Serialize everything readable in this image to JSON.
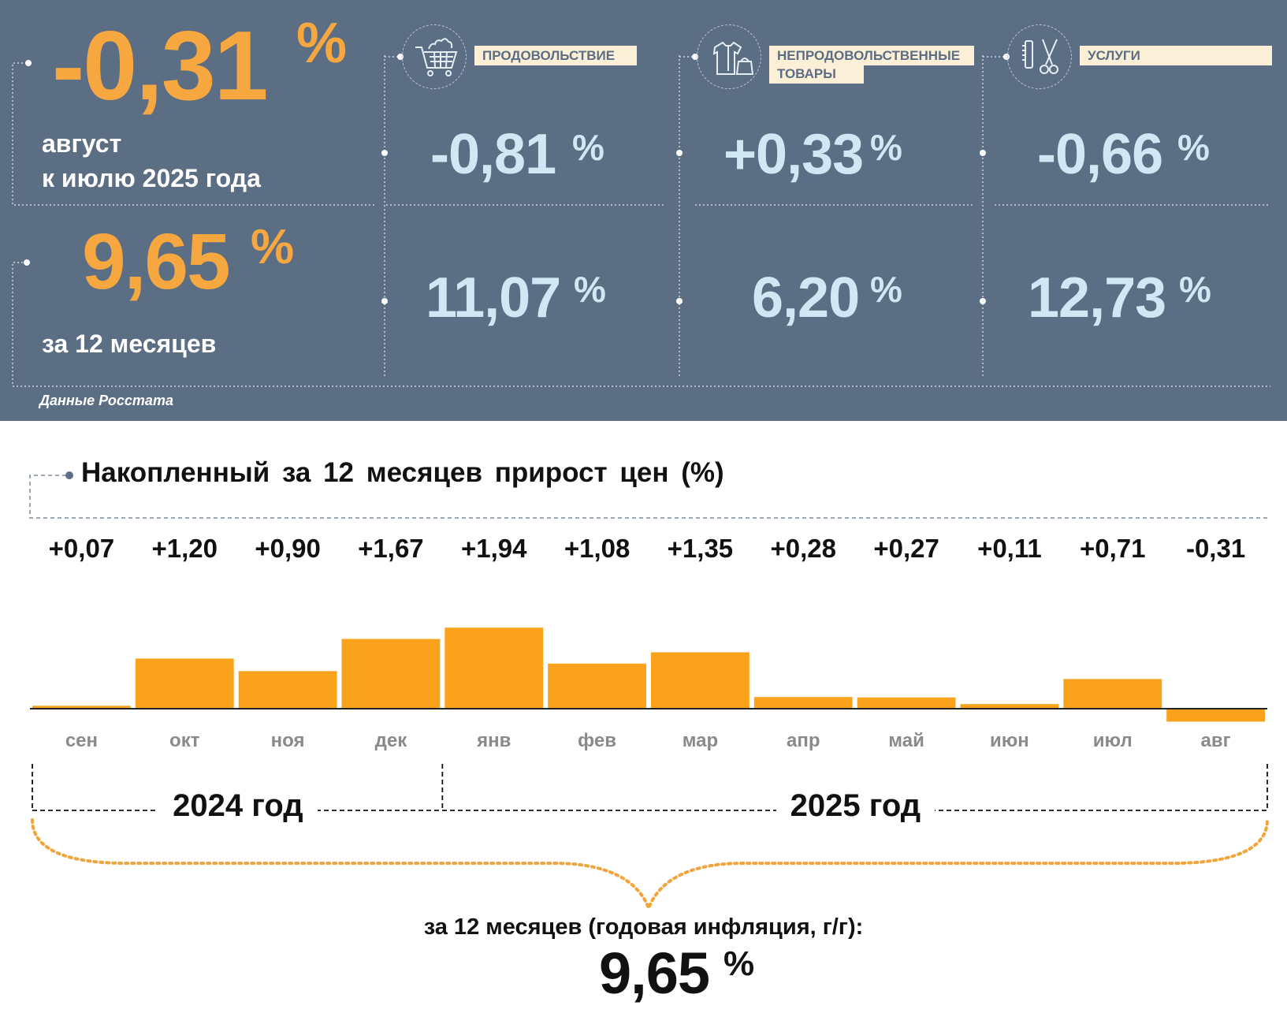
{
  "summary_panel": {
    "monthly": {
      "value": "-0,31",
      "unit": "%",
      "label_line1": "август",
      "label_line2": "к июлю 2025 года"
    },
    "annual": {
      "value": "9,65",
      "unit": "%",
      "label": "за 12 месяцев"
    },
    "categories": [
      {
        "name": "ПРОДОВОЛЬСТВИЕ",
        "icon": "shopping-cart-icon",
        "monthly": "-0,81",
        "annual": "11,07",
        "unit": "%"
      },
      {
        "name_line1": "НЕПРОДОВОЛЬСТВЕННЫЕ",
        "name_line2": "ТОВАРЫ",
        "icon": "clothing-bag-icon",
        "monthly": "+0,33",
        "annual": "6,20",
        "unit": "%"
      },
      {
        "name": "УСЛУГИ",
        "icon": "comb-scissors-icon",
        "monthly": "-0,66",
        "annual": "12,73",
        "unit": "%"
      }
    ],
    "source": "Данные Росстата",
    "colors": {
      "panel_bg": "#5b6e84",
      "headline": "#f6a740",
      "category_values": "#cfe8f3",
      "tag_bg": "#fcefd7"
    }
  },
  "chart_data": {
    "type": "bar",
    "title": "Накопленный за 12 месяцев прирост цен (%)",
    "categories": [
      "сен",
      "окт",
      "ноя",
      "дек",
      "янв",
      "фев",
      "мар",
      "апр",
      "май",
      "июн",
      "июл",
      "авг"
    ],
    "values": [
      0.07,
      1.2,
      0.9,
      1.67,
      1.94,
      1.08,
      1.35,
      0.28,
      0.27,
      0.11,
      0.71,
      -0.31
    ],
    "value_labels": [
      "+0,07",
      "+1,20",
      "+0,90",
      "+1,67",
      "+1,94",
      "+1,08",
      "+1,35",
      "+0,28",
      "+0,27",
      "+0,11",
      "+0,71",
      "-0,31"
    ],
    "year_groups": [
      {
        "label": "2024 год",
        "categories": [
          "сен",
          "окт",
          "ноя",
          "дек"
        ]
      },
      {
        "label": "2025 год",
        "categories": [
          "янв",
          "фев",
          "мар",
          "апр",
          "май",
          "июн",
          "июл",
          "авг"
        ]
      }
    ],
    "bar_color": "#fba21d",
    "summary_label": "за 12 месяцев (годовая инфляция, г/г):",
    "summary_value": "9,65",
    "summary_unit": "%"
  }
}
